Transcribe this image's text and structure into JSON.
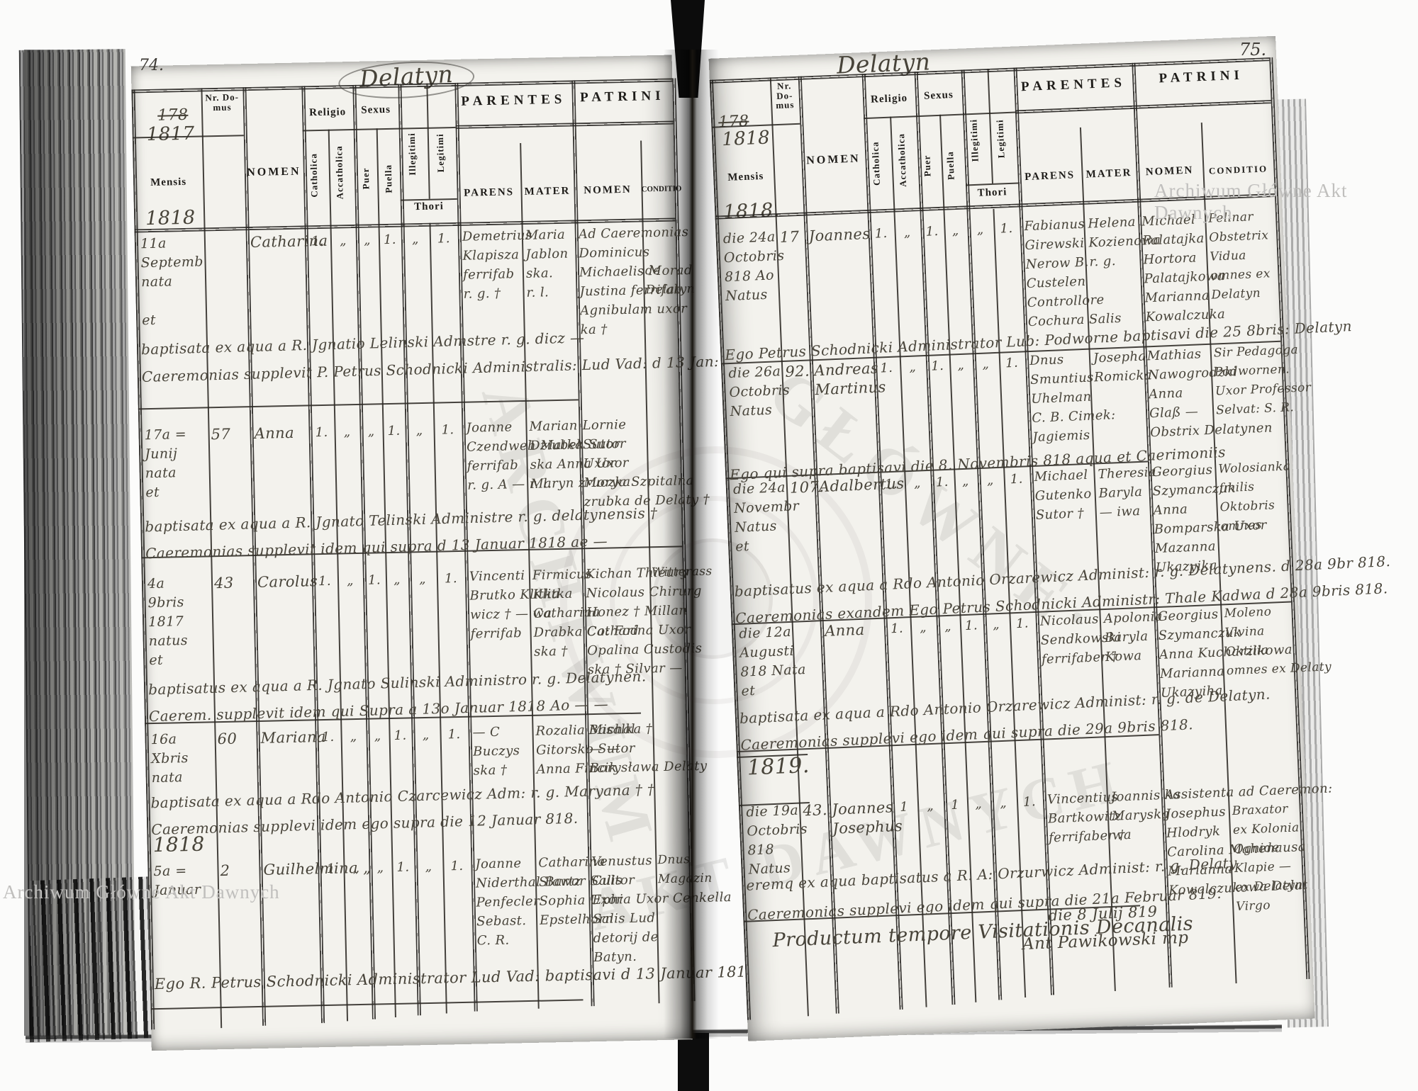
{
  "watermark": {
    "corner": "Archiwum Główne Akt Dawnych",
    "center_arc1": "ARCHIWUM",
    "center_arc2": "GŁÓWNE·",
    "center_arc3": "AKT DAWNYCH"
  },
  "headers": {
    "nr_domus": "Nr. Do- mus",
    "mensis": "Mensis",
    "nomen": "NOMEN",
    "religio": "Religio",
    "sexus": "Sexus",
    "catholica": "Catholica",
    "accatholica": "Accatholica",
    "puer": "Puer",
    "puella": "Puella",
    "illegitimi": "Illegitimi",
    "legitimi": "Legitimi",
    "thori": "Thori",
    "parentes": "PARENTES",
    "patrini": "PATRINI",
    "parens": "PARENS",
    "mater": "MATER",
    "patrini_nomen": "NOMEN",
    "conditio": "CONDITIO"
  },
  "left_page": {
    "page_no": "74.",
    "place": "Delatyn",
    "struck_number": "178",
    "year": "1817",
    "mensis_year": "1818",
    "records": [
      {
        "mensis": [
          "11a",
          "Septemb",
          "nata",
          "",
          "et"
        ],
        "nr": "",
        "nomen": [
          "Catharina"
        ],
        "ticks": [
          "1.",
          "„",
          "„",
          "1.",
          "„",
          "1."
        ],
        "parens": [
          "Demetrius",
          "Klapisza",
          "ferrifab",
          "r. g. †"
        ],
        "mater": [
          "Maria",
          "Jablon",
          "ska.",
          "r. l."
        ],
        "patrini": [
          "Ad Caeremonias",
          "Dominicus",
          "Michaelis Morad",
          "Justina ferrifab",
          "Agnibulam uxor",
          "ka †"
        ],
        "conditio": [
          "",
          "",
          "de",
          "Delatyn"
        ],
        "notes": [
          "baptisata ex aqua a R. Jgnatio Lelinski Admstre r. g. dicz —",
          "Caeremonias supplevit P. Petrus Schodnicki Administralis: Lud Vad: d 13 Jan: 818."
        ]
      },
      {
        "mensis": [
          "17a =",
          "Junij",
          "nata",
          "et"
        ],
        "nr": "57",
        "nomen": [
          "Anna"
        ],
        "ticks": [
          "1.",
          "„",
          "„",
          "1.",
          "„",
          "1."
        ],
        "parens": [
          "Joanne",
          "Czendweh Matka",
          "ferrifab",
          "r. g. A — r. l."
        ],
        "mater": [
          "Marian",
          "Dziubek Sutor",
          "ska Anna Uxor",
          "Maryn zruczka"
        ],
        "patrini": [
          "Lornie",
          "Sutor",
          "Uxor",
          "Morya Szpitalna",
          "zrubka de Delaty †"
        ],
        "conditio": [],
        "notes": [
          "baptisata ex aqua a R. Jgnato Telinski Administre r. g. delatynensis †",
          "Caeremonias supplevit idem qui supra d 13 Januar 1818 ae —"
        ]
      },
      {
        "mensis": [
          "4a",
          "9bris",
          "1817",
          "natus",
          "et"
        ],
        "nr": "43",
        "nomen": [
          "Carolus"
        ],
        "ticks": [
          "1.",
          "„",
          "1.",
          "„",
          "„",
          "1."
        ],
        "parens": [
          "Vincenti",
          "Brutko Klitka",
          "wicz † — wa",
          "ferrifab"
        ],
        "mater": [
          "Firmicus",
          "Klitka",
          "Catharina",
          "Drabka Co: Fod",
          "ska †"
        ],
        "patrini": [
          "Kichan Thieury",
          "Nicolaus Chirurg",
          "Honez † Millan",
          "Catharina Uxor",
          "Opalina Custodis",
          "ska † Silvar —"
        ],
        "conditio": [
          "Witterass"
        ],
        "notes": [
          "baptisatus ex aqua a R. Jgnato Sulinski Administro r. g. Delatynen.",
          "Caerem. supplevit idem qui Supra a 13o Januar 1818 Ao — —"
        ]
      },
      {
        "mensis": [
          "16a",
          "Xbris",
          "nata"
        ],
        "nr": "60",
        "nomen": [
          "Mariana"
        ],
        "ticks": [
          "1.",
          "„",
          "„",
          "1.",
          "„",
          "1."
        ],
        "parens": [
          "— C",
          "Buczys",
          "ska †"
        ],
        "mater": [
          "Rozalia Michal",
          "Gitorsko Sutor",
          "Anna Fincik"
        ],
        "patrini": [
          "Basalka †",
          "— —",
          "Borysława Delaty"
        ],
        "conditio": [],
        "notes": [
          "baptisata ex aqua a Rdo Antonio Czarcewicz Adm: r. g. Maryana † †",
          "Caeremonias supplevi idem ego supra die 12 Januar 818."
        ]
      },
      {
        "mensis": [
          "5a =",
          "Januar"
        ],
        "nr": "2",
        "nomen": [
          "Guilhelmina „"
        ],
        "ticks": [
          "1",
          "„",
          "„",
          "1.",
          "„",
          "1."
        ],
        "parens": [
          "Joanne",
          "Niderthal Bartz",
          "Penfecler",
          "Sebast.",
          "C. R."
        ],
        "mater": [
          "Catharina",
          "Slawor Salis",
          "Sophia Uxor",
          "Epstelhorn"
        ],
        "patrini": [
          "Venustus",
          "Cultor",
          "Ephia Uxor Cenkella",
          "Salis Lud",
          "detorij de",
          "Batyn."
        ],
        "conditio": [
          "Dnus",
          "Magazin"
        ],
        "notes": []
      }
    ],
    "extras": [
      "1818",
      "Ego R. Petrus Schodnicki Administrator Lud Vad: baptisavi d 13 Januar 1818."
    ]
  },
  "right_page": {
    "page_no": "75.",
    "place": "Delatyn",
    "struck_number": "178",
    "year": "1818",
    "mensis_year": "1818.",
    "records": [
      {
        "mensis": [
          "die 24a",
          "Octobris",
          "818 Ao",
          "Natus"
        ],
        "nr": "17",
        "nomen": [
          "Joannes"
        ],
        "ticks": [
          "1.",
          "„",
          "1.",
          "„",
          "„",
          "1."
        ],
        "parens": [
          "Fabianus",
          "Girewski",
          "Nerow B.",
          "Custelen",
          "Controllore",
          "Cochura Salis"
        ],
        "mater": [
          "Helena",
          "Kozienowa",
          "r. g."
        ],
        "patrini": [
          "Michael",
          "Palatajka",
          "Hortora",
          "Palatajkowa",
          "Marianna",
          "Kowalczuka"
        ],
        "conditio": [
          "Pelinar",
          "Obstetrix",
          "Vidua",
          "omnes ex",
          "Delatyn"
        ],
        "notes": [
          "Ego Petrus Schodnicki Administrator Lub: Podworne baptisavi die 25 8bris: Delatyn"
        ]
      },
      {
        "mensis": [
          "die 26a",
          "Octobris",
          "Natus"
        ],
        "nr": "92.",
        "nomen": [
          "Andreas",
          "Martinus"
        ],
        "ticks": [
          "1.",
          "„",
          "1.",
          "„",
          "„",
          "1."
        ],
        "parens": [
          "Dnus",
          "Smuntius",
          "Uhelman",
          "C. B. Cimek:",
          "Jagiemis"
        ],
        "mater": [
          "Josepha",
          "Romicka"
        ],
        "patrini": [
          "Mathias",
          "Nawogrodzki",
          "Anna",
          "Glaß —",
          "Obstrix Delatynen"
        ],
        "conditio": [
          "Sir Pedagoga",
          "Podwornen.",
          "Uxor Professor",
          "Selvat: S. R."
        ],
        "notes": [
          "Ego qui supra baptisavi die 8. Novembris 818 aqua et Caerimoniis"
        ]
      },
      {
        "mensis": [
          "die 24a",
          "Novembr",
          "Natus",
          "et"
        ],
        "nr": "107.",
        "nomen": [
          "Adalbertus"
        ],
        "ticks": [
          "1.",
          "„",
          "1.",
          "„",
          "„",
          "1."
        ],
        "parens": [
          "Michael",
          "Gutenko",
          "Sutor †"
        ],
        "mater": [
          "Theresia",
          "Baryla",
          "— iwa"
        ],
        "patrini": [
          "Georgius",
          "Szymanczuk",
          "Anna",
          "Bomparska Uxor",
          "Mazanna",
          "Ukazyika"
        ],
        "conditio": [
          "Wolosianka",
          "fmilis",
          "Oktobris",
          "omnes"
        ],
        "notes": [
          "baptisatus ex aqua a Rdo Antonio Orzarewicz Administ: r. g. Delatynens. d 28a 9br 818.",
          "Caeremonias exandem Ego Petrus Schodnicki Administr: Thale Kadwa d 28a 9bris 818."
        ]
      },
      {
        "mensis": [
          "die 12a",
          "Augusti",
          "818 Nata",
          "et"
        ],
        "nr": "",
        "nomen": [
          "Anna"
        ],
        "ticks": [
          "1.",
          "„",
          "„",
          "1.",
          "„",
          "1."
        ],
        "parens": [
          "Nicolaus",
          "Sendkowski",
          "ferrifaber †"
        ],
        "mater": [
          "Apolonia",
          "Baryla",
          "Kowa"
        ],
        "patrini": [
          "Georgius",
          "Szymanczuk",
          "Anna Kucharzikowa",
          "Marianna",
          "Ukazyiha"
        ],
        "conditio": [
          "Moleno",
          "Vivina",
          "Oktilia",
          "omnes ex Delaty"
        ],
        "notes": [
          "baptisata ex aqua a Rdo Antonio Orzarewicz Administ: r. g. de Delatyn.",
          "Caeremonias supplevi ego idem qui supra die 29a 9bris 818."
        ]
      },
      {
        "mensis": [
          "die 19a",
          "Octobris",
          "818",
          "Natus"
        ],
        "nr": "43.",
        "nomen": [
          "Joannes",
          "Josephus"
        ],
        "ticks": [
          "1",
          "„",
          "1",
          "„",
          "„",
          "1."
        ],
        "parens": [
          "Vincentius",
          "Bartkowitz",
          "ferrifaber †"
        ],
        "mater": [
          "Joannis ka",
          "Maryska",
          "wa"
        ],
        "patrini": [
          "Assistenta ad Caeremon:",
          "Josephus",
          "Hlodryk",
          "Carolina Mahenausa",
          "Marianna",
          "Kowalczukowa Delat"
        ],
        "conditio": [
          "",
          "Braxator",
          "ex Kolonia",
          "Ognide",
          "Klapie —",
          "ex Delatyn",
          "Virgo"
        ],
        "notes": [
          "eremq ex aqua baptisatus a R. A: Orzurwicz Administ: r. g. Delaty",
          "Caeremonias supplevi ego idem qui supra die 21a Februar 819."
        ]
      }
    ],
    "extras": [
      "1819.",
      "Productum tempore Visitationis Decanalis",
      "die 8 Julij 819",
      "Ant Pawikowski mp"
    ]
  }
}
